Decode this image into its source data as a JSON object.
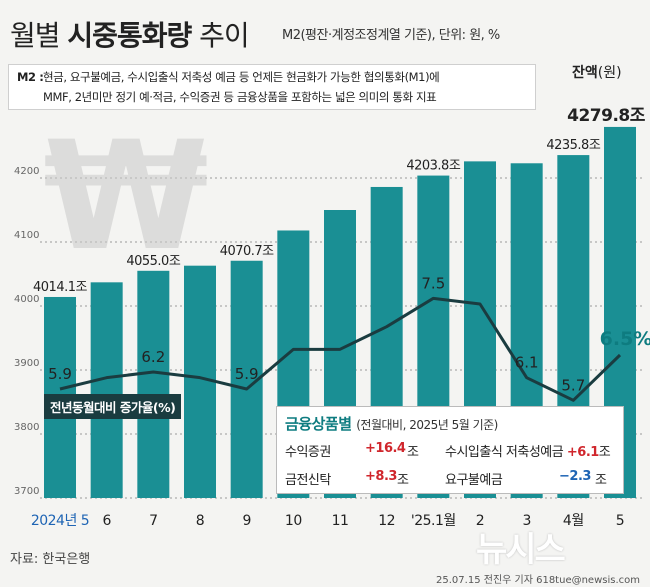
{
  "header": {
    "title_pre": "월별 ",
    "title_bold": "시중통화량",
    "title_post": " 추이",
    "note": "M2(평잔·계정조정계열 기준), 단위: 원, %"
  },
  "definition": {
    "label": "M2 :",
    "line1": "현금, 요구불예금, 수시입출식 저축성 예금 등 언제든 현금화가 가능한 협의통화(M1)에",
    "line2": "MMF, 2년미만 정기 예·적금, 수익증권 등 금융상품을 포함하는 넓은 의미의 통화 지표"
  },
  "balance_label": "잔액",
  "balance_unit": "(원)",
  "growth_label": "전년동월대비 증가율(%)",
  "watermark_icon": "won-sign-icon",
  "chart_data": [
    {
      "type": "bar",
      "categories": [
        "2024년 5",
        "6",
        "7",
        "8",
        "9",
        "10",
        "11",
        "12",
        "'25.1월",
        "2",
        "3",
        "4월",
        "5"
      ],
      "values": [
        4014.1,
        4037,
        4055.0,
        4063,
        4070.7,
        4118,
        4150,
        4186,
        4203.8,
        4226,
        4223,
        4235.8,
        4279.8
      ],
      "value_labels": [
        "4014.1조",
        "",
        "4055.0조",
        "",
        "4070.7조",
        "",
        "",
        "",
        "4203.8조",
        "",
        "",
        "4235.8조",
        "4279.8조"
      ],
      "ylim": [
        3700,
        4300
      ],
      "yticks": [
        "3700",
        "3800",
        "3900",
        "4000",
        "4100",
        "4200"
      ],
      "grid": true,
      "color": "#1a8f94"
    },
    {
      "type": "line",
      "name": "전년동월대비 증가율(%)",
      "categories": [
        "2024년 5",
        "6",
        "7",
        "8",
        "9",
        "10",
        "11",
        "12",
        "'25.1월",
        "2",
        "3",
        "4월",
        "5"
      ],
      "values": [
        5.9,
        6.1,
        6.2,
        6.1,
        5.9,
        6.6,
        6.6,
        7.0,
        7.5,
        7.4,
        6.1,
        5.7,
        6.5
      ],
      "value_labels": [
        "5.9",
        "",
        "6.2",
        "",
        "5.9",
        "",
        "",
        "",
        "7.5",
        "",
        "6.1",
        "5.7",
        "6.5%"
      ],
      "color": "#1a3c40"
    }
  ],
  "financial_box": {
    "title": "금융상품별",
    "subtitle": "(전월대비, 2025년 5월 기준)",
    "items": [
      {
        "label": "수익증권",
        "value": "+16.4",
        "unit": "조",
        "color": "#d0262c"
      },
      {
        "label": "수시입출식 저축성예금",
        "value": "+6.1",
        "unit": "조",
        "color": "#d0262c"
      },
      {
        "label": "금전신탁",
        "value": "+8.3",
        "unit": "조",
        "color": "#d0262c"
      },
      {
        "label": "요구불예금",
        "value": "−2.3",
        "unit": "조",
        "color": "#1e64b4"
      }
    ]
  },
  "source": "자료: 한국은행",
  "credit": "25.07.15 전진우 기자 618tue@newsis.com",
  "logo": "뉴시스"
}
